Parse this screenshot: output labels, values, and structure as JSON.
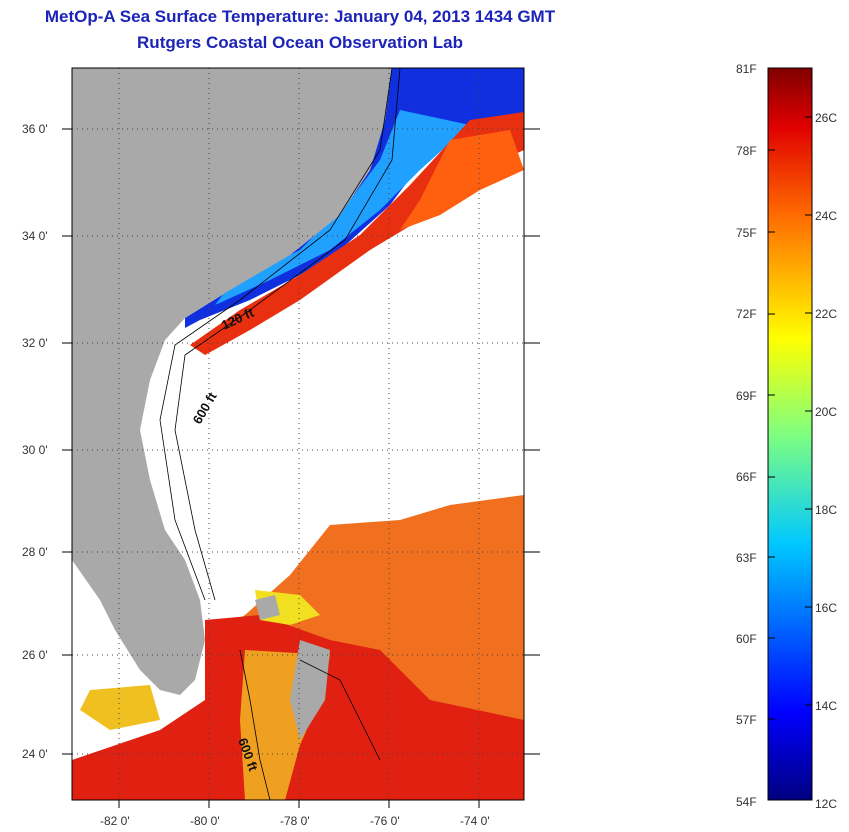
{
  "title": {
    "line1": "MetOp-A Sea Surface Temperature:  January 04, 2013 1434 GMT",
    "line2": "Rutgers Coastal Ocean Observation Lab"
  },
  "map": {
    "lat_labels": [
      "36 0'",
      "34 0'",
      "32 0'",
      "30 0'",
      "28 0'",
      "26 0'",
      "24 0'"
    ],
    "lon_labels": [
      "-82 0'",
      "-80 0'",
      "-78 0'",
      "-76 0'",
      "-74 0'"
    ],
    "contour_labels": [
      "120 ft",
      "600 ft",
      "600 ft"
    ],
    "colors": {
      "land": "#a9a9a9",
      "no_data": "#ffffff"
    }
  },
  "colorbar": {
    "fahrenheit_labels": [
      "81F",
      "78F",
      "75F",
      "72F",
      "69F",
      "66F",
      "63F",
      "60F",
      "57F",
      "54F"
    ],
    "celsius_labels": [
      "26C",
      "24C",
      "22C",
      "20C",
      "18C",
      "16C",
      "14C",
      "12C"
    ],
    "colormap": "jet"
  }
}
